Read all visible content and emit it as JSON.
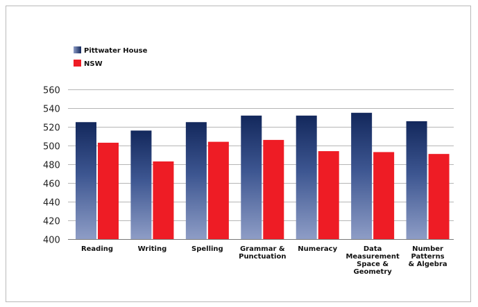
{
  "chart_data": {
    "type": "bar",
    "title": "",
    "xlabel": "",
    "ylabel": "",
    "ylim": [
      400,
      560
    ],
    "yticks": [
      400,
      420,
      440,
      460,
      480,
      500,
      520,
      540,
      560
    ],
    "grid": true,
    "legend_position": "top-left",
    "categories": [
      [
        "Reading"
      ],
      [
        "Writing"
      ],
      [
        "Spelling"
      ],
      [
        "Grammar &",
        "Punctuation"
      ],
      [
        "Numeracy"
      ],
      [
        "Data",
        "Measurement",
        "Space &",
        "Geometry"
      ],
      [
        "Number",
        "Patterns",
        "& Algebra"
      ]
    ],
    "series": [
      {
        "name": "Pittwater House",
        "color": "#1f3a7a",
        "values": [
          525,
          516,
          525,
          532,
          532,
          535,
          526
        ]
      },
      {
        "name": "NSW",
        "color": "#ee1c25",
        "values": [
          503,
          483,
          504,
          506,
          494,
          493,
          491
        ]
      }
    ]
  }
}
